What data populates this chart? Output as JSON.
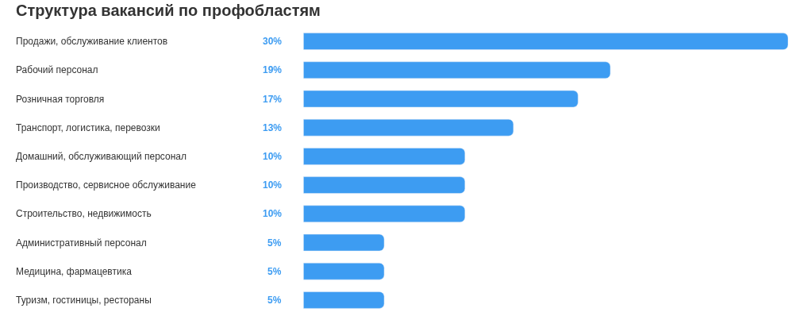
{
  "chart_data": {
    "type": "bar",
    "orientation": "horizontal",
    "title": "Структура вакансий по профобластям",
    "categories": [
      "Продажи, обслуживание клиентов",
      "Рабочий персонал",
      "Розничная торговля",
      "Транспорт, логистика, перевозки",
      "Домашний, обслуживающий персонал",
      "Производство, сервисное обслуживание",
      "Строительство, недвижимость",
      "Административный персонал",
      "Медицина, фармацевтика",
      "Туризм, гостиницы, рестораны"
    ],
    "values": [
      30,
      19,
      17,
      13,
      10,
      10,
      10,
      5,
      5,
      5
    ],
    "value_labels": [
      "30%",
      "19%",
      "17%",
      "13%",
      "10%",
      "10%",
      "10%",
      "5%",
      "5%",
      "5%"
    ],
    "color": "#3d9cf2",
    "legend": false
  }
}
